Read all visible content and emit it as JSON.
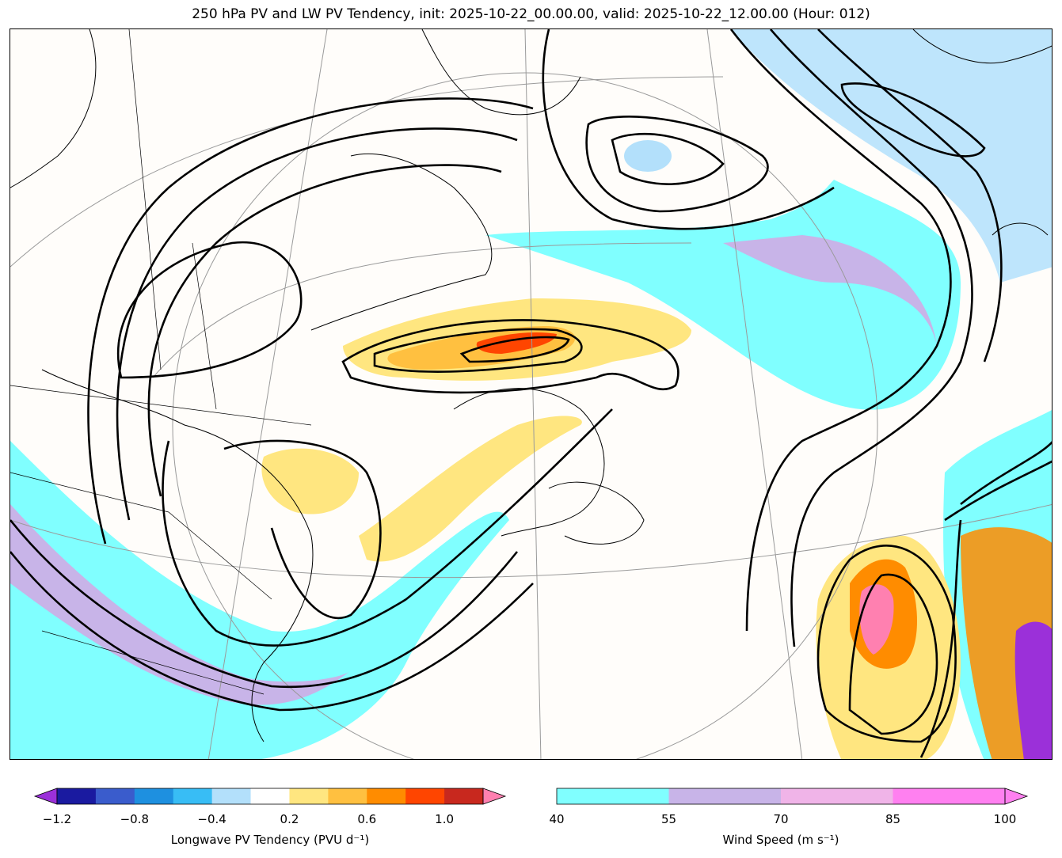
{
  "title": "250 hPa PV and LW PV Tendency, init: 2025-10-22_00.00.00, valid: 2025-10-22_12.00.00 (Hour: 012)",
  "pv_colorbar": {
    "label": "Longwave PV Tendency (PVU d⁻¹)",
    "ticks": [
      "−1.2",
      "−0.8",
      "−0.4",
      "0.2",
      "0.6",
      "1.0"
    ],
    "colors": [
      "#9b30d9",
      "#1a1aa0",
      "#3a5ccc",
      "#1e90e0",
      "#38bdf5",
      "#b3e0fb",
      "#ffffff",
      "#ffe680",
      "#ffc040",
      "#ff8c00",
      "#ff4500",
      "#c8281e",
      "#ff80b0"
    ]
  },
  "wind_colorbar": {
    "label": "Wind Speed (m s⁻¹)",
    "ticks": [
      "40",
      "55",
      "70",
      "85",
      "100"
    ],
    "colors": [
      "#80ffff",
      "#c8b4e8",
      "#f0b4e8",
      "#ff80f0"
    ]
  }
}
